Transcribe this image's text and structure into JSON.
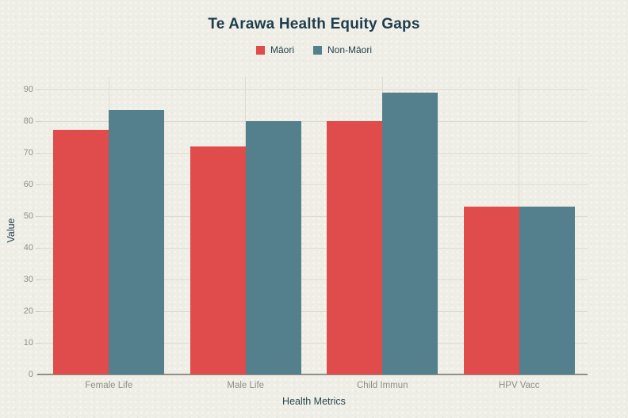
{
  "chart_data": {
    "type": "bar",
    "title": "Te Arawa Health Equity Gaps",
    "categories": [
      "Female Life",
      "Male Life",
      "Child Immun",
      "HPV Vacc"
    ],
    "series": [
      {
        "name": "Māori",
        "color": "#e04b4b",
        "values": [
          77.3,
          71.9,
          80,
          53
        ]
      },
      {
        "name": "Non-Māori",
        "color": "#54808d",
        "values": [
          83.5,
          80.0,
          89,
          53
        ]
      }
    ],
    "xlabel": "Health Metrics",
    "ylabel": "Value",
    "ylim": [
      0,
      90
    ],
    "ytick_step": 10,
    "yticks": [
      "0",
      "10",
      "20",
      "30",
      "40",
      "50",
      "60",
      "70",
      "80",
      "90"
    ],
    "grid": true,
    "legend_position": "top-center",
    "colors": {
      "background": "#efeee6",
      "title_text": "#1c3d4c",
      "axis_title_text": "#27464f",
      "tick_text": "#8f8f88",
      "gridline": "#dedcd1",
      "axis_line": "#8f9086"
    }
  }
}
